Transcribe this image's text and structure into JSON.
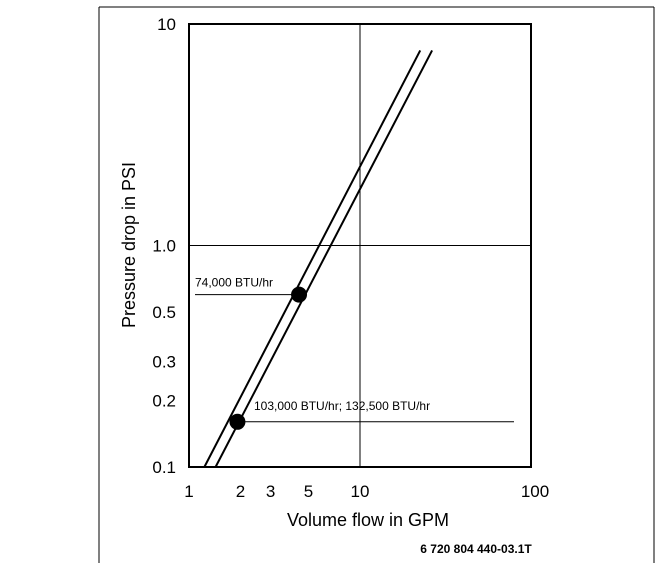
{
  "chart_data": {
    "type": "line",
    "x_scale": "log",
    "y_scale": "log",
    "xlim": [
      1,
      100
    ],
    "ylim": [
      0.1,
      10
    ],
    "xlabel": "Volume flow in GPM",
    "ylabel": "Pressure drop in PSI",
    "x_ticks": [
      {
        "value": 1,
        "label": "1"
      },
      {
        "value": 2,
        "label": "2"
      },
      {
        "value": 3,
        "label": "3"
      },
      {
        "value": 5,
        "label": "5"
      },
      {
        "value": 10,
        "label": "10"
      },
      {
        "value": 100,
        "label": "100"
      }
    ],
    "y_ticks": [
      {
        "value": 10,
        "label": "10"
      },
      {
        "value": 1,
        "label": "1.0"
      },
      {
        "value": 0.5,
        "label": "0.5"
      },
      {
        "value": 0.3,
        "label": "0.3"
      },
      {
        "value": 0.2,
        "label": "0.2"
      },
      {
        "value": 0.1,
        "label": "0.1"
      }
    ],
    "grid": {
      "x": [
        10
      ],
      "y": [
        1
      ]
    },
    "series": [
      {
        "x": [
          1.23,
          22.5
        ],
        "y": [
          0.1,
          7.6
        ]
      },
      {
        "x": [
          1.43,
          26.4
        ],
        "y": [
          0.1,
          7.6
        ]
      }
    ],
    "points": [
      {
        "x": 4.4,
        "y": 0.6
      },
      {
        "x": 1.92,
        "y": 0.16
      }
    ],
    "annotations": [
      {
        "text": "74,000 BTU/hr",
        "x": 1.02,
        "y": 0.6,
        "line_to_x": 4.4
      },
      {
        "text": "103,000 BTU/hr; 132,500 BTU/hr",
        "x": 2.3,
        "y": 0.16,
        "line_to_x": 80
      }
    ]
  },
  "figure_id": "6 720 804 440-03.1T"
}
